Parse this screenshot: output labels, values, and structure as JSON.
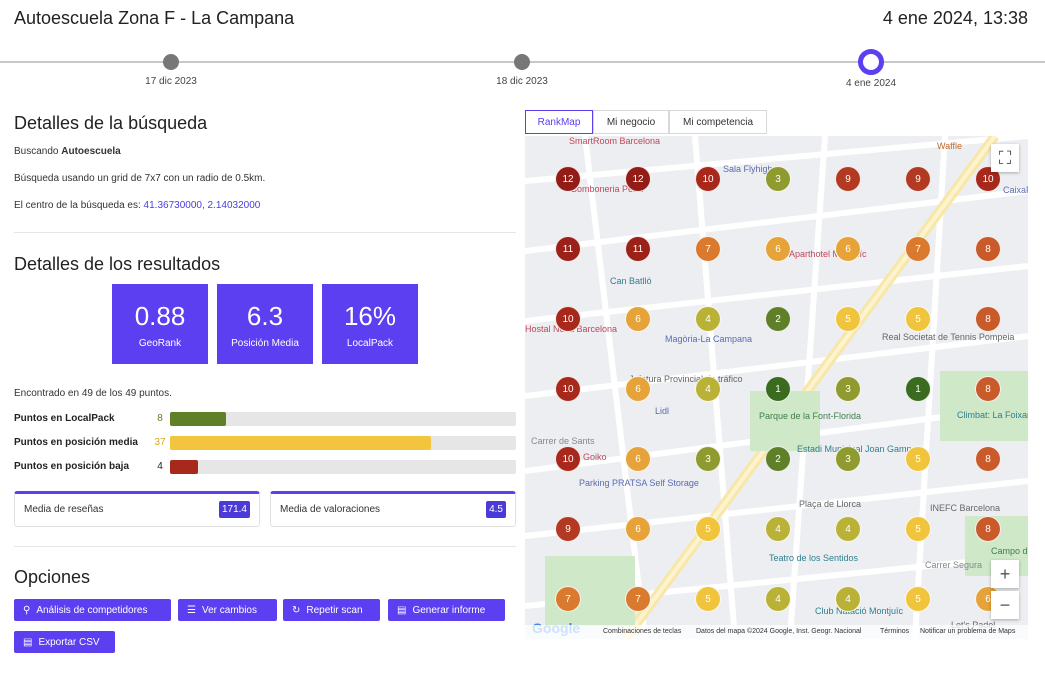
{
  "header": {
    "title": "Autoescuela Zona F - La Campana",
    "date": "4 ene 2024, 13:38"
  },
  "timeline": [
    {
      "label": "17 dic 2023",
      "active": false
    },
    {
      "label": "18 dic 2023",
      "active": false
    },
    {
      "label": "4 ene 2024",
      "active": true
    }
  ],
  "search": {
    "heading": "Detalles de la búsqueda",
    "searching_prefix": "Buscando",
    "keyword": "Autoescuela",
    "grid_text": "Búsqueda usando un grid de 7x7 con un radio de 0.5km.",
    "center_prefix": "El centro de la búsqueda es:",
    "center_coords": "41.36730000, 2.14032000"
  },
  "results": {
    "heading": "Detalles de los resultados",
    "kpis": [
      {
        "value": "0.88",
        "label": "GeoRank"
      },
      {
        "value": "6.3",
        "label": "Posición Media"
      },
      {
        "value": "16%",
        "label": "LocalPack"
      }
    ],
    "found_text": "Encontrado en 49 de los 49 puntos.",
    "bars": [
      {
        "label": "Puntos en LocalPack",
        "count": "8",
        "fraction": 0.163,
        "color": "#5f7f28",
        "count_color": "#5f7f28"
      },
      {
        "label": "Puntos en posición media",
        "count": "37",
        "fraction": 0.755,
        "color": "#f3c53f",
        "count_color": "#d9a826"
      },
      {
        "label": "Puntos en posición baja",
        "count": "4",
        "fraction": 0.082,
        "color": "#a7291c",
        "count_color": "#222222"
      }
    ],
    "stats": [
      {
        "label": "Media de reseñas",
        "value": "171.4"
      },
      {
        "label": "Media de valoraciones",
        "value": "4.5"
      }
    ]
  },
  "options": {
    "heading": "Opciones",
    "buttons": [
      {
        "label": "Análisis de competidores",
        "icon": "⚲"
      },
      {
        "label": "Ver cambios",
        "icon": "☰"
      },
      {
        "label": "Repetir scan",
        "icon": "↻"
      },
      {
        "label": "Generar informe",
        "icon": "▤"
      },
      {
        "label": "Exportar CSV",
        "icon": "▤"
      }
    ]
  },
  "map": {
    "tabs": [
      "RankMap",
      "Mi negocio",
      "Mi competencia"
    ],
    "grid_ranks": [
      [
        12,
        12,
        10,
        3,
        9,
        9,
        10
      ],
      [
        11,
        11,
        7,
        6,
        6,
        7,
        8
      ],
      [
        10,
        6,
        4,
        2,
        5,
        5,
        8
      ],
      [
        10,
        6,
        4,
        1,
        3,
        1,
        8
      ],
      [
        10,
        6,
        3,
        2,
        3,
        5,
        8
      ],
      [
        9,
        6,
        5,
        4,
        4,
        5,
        8
      ],
      [
        7,
        7,
        5,
        4,
        4,
        5,
        6
      ]
    ],
    "rank_colors": {
      "1": "#3a6b1e",
      "2": "#5f7f28",
      "3": "#8f9a2f",
      "4": "#b9b236",
      "5": "#f0c43c",
      "6": "#e6a33a",
      "7": "#d97a2f",
      "8": "#c95a2a",
      "9": "#b33a22",
      "10": "#a8281c",
      "11": "#9c2219",
      "12": "#941c17"
    },
    "labels": [
      "SmartRoom Barcelona",
      "Bomboneria Perla",
      "Sala Flyhigh",
      "Can Batlló",
      "Aparthotel Montjuïc",
      "Hostal Nova Barcelona",
      "Magòria-La Campana",
      "Jefatura Provincial de tráfico",
      "Lidl",
      "Real Societat de Tennis Pompeia",
      "Parque de la Font-Florida",
      "Estadi Municipal Joan Gamper",
      "Goiko",
      "Parking PRATSA Self Storage",
      "Plaça de Llorca",
      "INEFC Barcelona",
      "Climbat: La Foixarda",
      "Teatro de los Sentidos",
      "Club Natació Montjuïc",
      "Waffle",
      "Let's Padel",
      "Campo de Béisbol",
      "CaixaForum",
      "Carrer de Sants",
      "Carrer Segura"
    ],
    "logo": "Google",
    "footer": [
      "Combinaciones de teclas",
      "Datos del mapa ©2024 Google, Inst. Geogr. Nacional",
      "Términos",
      "Notificar un problema de Maps"
    ]
  }
}
